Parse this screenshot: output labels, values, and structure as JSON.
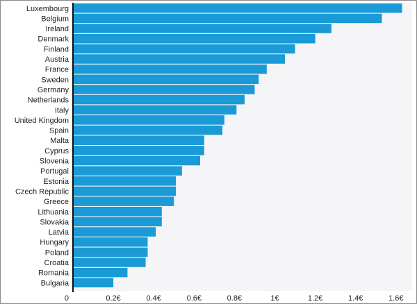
{
  "chart_data": {
    "type": "bar",
    "orientation": "horizontal",
    "title": "",
    "xlabel": "",
    "ylabel": "",
    "categories": [
      "Luxembourg",
      "Belgium",
      "Ireland",
      "Denmark",
      "Finland",
      "Austria",
      "France",
      "Sweden",
      "Germany",
      "Netherlands",
      "Italy",
      "United Kingdom",
      "Spain",
      "Malta",
      "Cyprus",
      "Slovenia",
      "Portugal",
      "Estonia",
      "Czech Republic",
      "Greece",
      "Lithuania",
      "Slovakia",
      "Latvia",
      "Hungary",
      "Poland",
      "Croatia",
      "Romania",
      "Bulgaria"
    ],
    "values": [
      1.63,
      1.53,
      1.28,
      1.2,
      1.1,
      1.05,
      0.96,
      0.92,
      0.9,
      0.85,
      0.81,
      0.75,
      0.74,
      0.65,
      0.65,
      0.63,
      0.54,
      0.51,
      0.51,
      0.5,
      0.44,
      0.44,
      0.41,
      0.37,
      0.37,
      0.36,
      0.27,
      0.2
    ],
    "xlim": [
      0,
      1.68
    ],
    "xticks": [
      0,
      0.2,
      0.4,
      0.6,
      0.8,
      1.0,
      1.2,
      1.4,
      1.6
    ],
    "xtick_labels": [
      "0",
      "0.2€",
      "0.4€",
      "0.6€",
      "0.8€",
      "1€",
      "1.2€",
      "1.4€",
      "1.6€"
    ],
    "grid": false,
    "legend": "none",
    "colors": {
      "bar": "#1a9ad6",
      "plot_background": "#f5f5f7",
      "axis": "#111111",
      "text": "#222222"
    }
  }
}
